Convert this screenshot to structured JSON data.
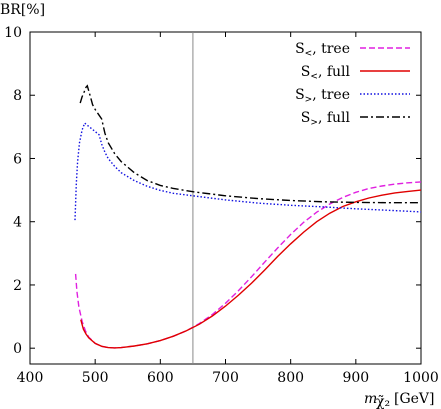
{
  "chart_data": {
    "type": "line",
    "ylabel": "BR[%]",
    "xlabel": "m",
    "xlabel_subscript": "χ̃₂",
    "xlabel_unit": "[GeV]",
    "xlim": [
      400,
      1000
    ],
    "ylim": [
      -0.5,
      10
    ],
    "xticks": [
      400,
      500,
      600,
      700,
      800,
      900,
      1000
    ],
    "yticks": [
      0,
      2,
      4,
      6,
      8,
      10
    ],
    "grid": false,
    "legend_position": "top-right",
    "vertical_marker": 650,
    "series": [
      {
        "name": "S<, tree",
        "label_main": "S",
        "label_sub": "<",
        "label_rest": ", tree",
        "color": "#e020e0",
        "dash": "6,3",
        "x": [
          470,
          472,
          475,
          480,
          485,
          490,
          500,
          510,
          520,
          530,
          540,
          560,
          580,
          600,
          620,
          640,
          660,
          680,
          700,
          720,
          740,
          760,
          780,
          800,
          820,
          840,
          860,
          880,
          900,
          920,
          940,
          960,
          980,
          1000
        ],
        "y": [
          2.35,
          1.8,
          1.3,
          0.85,
          0.55,
          0.35,
          0.15,
          0.06,
          0.02,
          0.01,
          0.02,
          0.07,
          0.14,
          0.24,
          0.38,
          0.55,
          0.78,
          1.07,
          1.42,
          1.82,
          2.26,
          2.72,
          3.17,
          3.6,
          3.98,
          4.3,
          4.56,
          4.77,
          4.93,
          5.05,
          5.13,
          5.19,
          5.23,
          5.26
        ]
      },
      {
        "name": "S<, full",
        "label_main": "S",
        "label_sub": "<",
        "label_rest": ", full",
        "color": "#e00000",
        "dash": "",
        "x": [
          478,
          482,
          486,
          490,
          500,
          510,
          520,
          530,
          540,
          560,
          580,
          600,
          620,
          640,
          660,
          680,
          700,
          720,
          740,
          760,
          780,
          800,
          820,
          840,
          860,
          880,
          900,
          920,
          940,
          960,
          980,
          1000
        ],
        "y": [
          0.9,
          0.6,
          0.45,
          0.33,
          0.15,
          0.06,
          0.02,
          0.01,
          0.02,
          0.07,
          0.14,
          0.24,
          0.38,
          0.55,
          0.76,
          1.02,
          1.33,
          1.68,
          2.06,
          2.47,
          2.9,
          3.3,
          3.67,
          4.0,
          4.27,
          4.48,
          4.63,
          4.75,
          4.84,
          4.91,
          4.96,
          5.0
        ]
      },
      {
        "name": "S>, tree",
        "label_main": "S",
        "label_sub": ">",
        "label_rest": ", tree",
        "color": "#1010e0",
        "dash": "1.5,2",
        "x": [
          469,
          471,
          473,
          476,
          480,
          484,
          488,
          494,
          500,
          506,
          510,
          515,
          520,
          530,
          540,
          560,
          580,
          600,
          620,
          650,
          700,
          750,
          800,
          850,
          900,
          950,
          1000
        ],
        "y": [
          4.05,
          5.2,
          5.9,
          6.5,
          6.9,
          7.12,
          7.05,
          6.95,
          6.85,
          6.75,
          6.45,
          6.2,
          6.0,
          5.75,
          5.55,
          5.3,
          5.12,
          4.99,
          4.9,
          4.82,
          4.69,
          4.59,
          4.52,
          4.47,
          4.41,
          4.36,
          4.31
        ]
      },
      {
        "name": "S>, full",
        "label_main": "S",
        "label_sub": ">",
        "label_rest": ", full",
        "color": "#000000",
        "dash": "8,3,2,3",
        "x": [
          477,
          480,
          483,
          486,
          488,
          492,
          496,
          500,
          505,
          510,
          515,
          520,
          530,
          540,
          560,
          580,
          600,
          620,
          650,
          700,
          750,
          800,
          850,
          900,
          950,
          1000
        ],
        "y": [
          7.75,
          7.95,
          8.1,
          8.25,
          8.3,
          8.0,
          7.7,
          7.55,
          7.4,
          7.25,
          6.8,
          6.5,
          6.15,
          5.9,
          5.55,
          5.3,
          5.15,
          5.05,
          4.95,
          4.82,
          4.73,
          4.67,
          4.63,
          4.61,
          4.6,
          4.6
        ]
      }
    ]
  }
}
